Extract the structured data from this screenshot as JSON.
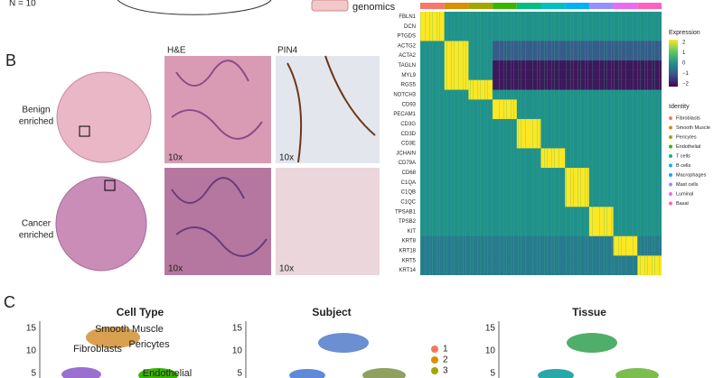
{
  "panel_a": {
    "n_label": "N = 10",
    "genomics": "genomics"
  },
  "panel_b": {
    "label": "B",
    "he_title": "H&E",
    "pin4_title": "PIN4",
    "benign": [
      "Benign",
      "enriched"
    ],
    "cancer": [
      "Cancer",
      "enriched"
    ],
    "magnification": [
      "10x",
      "10x",
      "10x",
      "10x"
    ]
  },
  "heatmap": {
    "genes": [
      "FBLN1",
      "DCN",
      "PTGDS",
      "ACTG2",
      "ACTA2",
      "TAGLN",
      "MYL9",
      "RGS5",
      "NOTCH3",
      "CD93",
      "PECAM1",
      "CD3G",
      "CD3D",
      "CD3E",
      "JCHAIN",
      "CD79A",
      "CD68",
      "C1QA",
      "C1QB",
      "C1QC",
      "TPSAB1",
      "TPSB2",
      "KIT",
      "KRT8",
      "KRT18",
      "KRT5",
      "KRT14"
    ],
    "expression_title": "Expression",
    "expression_ticks": [
      "2",
      "1",
      "0",
      "−1",
      "−2"
    ],
    "identity_title": "Identity",
    "identities": [
      {
        "name": "Fibroblasts",
        "color": "#f8766d"
      },
      {
        "name": "Smooth Muscle",
        "color": "#d89000"
      },
      {
        "name": "Pericytes",
        "color": "#a3a500"
      },
      {
        "name": "Endothelial",
        "color": "#39b600"
      },
      {
        "name": "T cells",
        "color": "#00bf7d"
      },
      {
        "name": "B cells",
        "color": "#00bfc4"
      },
      {
        "name": "Macrophages",
        "color": "#00b0f6"
      },
      {
        "name": "Mast cells",
        "color": "#9590ff"
      },
      {
        "name": "Luminal",
        "color": "#e76bf3"
      },
      {
        "name": "Basal",
        "color": "#ff62bc"
      }
    ]
  },
  "panel_c": {
    "label": "C",
    "titles": [
      "Cell Type",
      "Subject",
      "Tissue"
    ],
    "yticks": [
      "15",
      "10",
      "5"
    ],
    "cell_type_labels": [
      "Smooth Muscle",
      "Fibroblasts",
      "Pericytes",
      "Endothelial"
    ],
    "subjects": [
      {
        "name": "1",
        "color": "#f07a5a"
      },
      {
        "name": "2",
        "color": "#d89000"
      },
      {
        "name": "3",
        "color": "#a3a500"
      }
    ]
  }
}
